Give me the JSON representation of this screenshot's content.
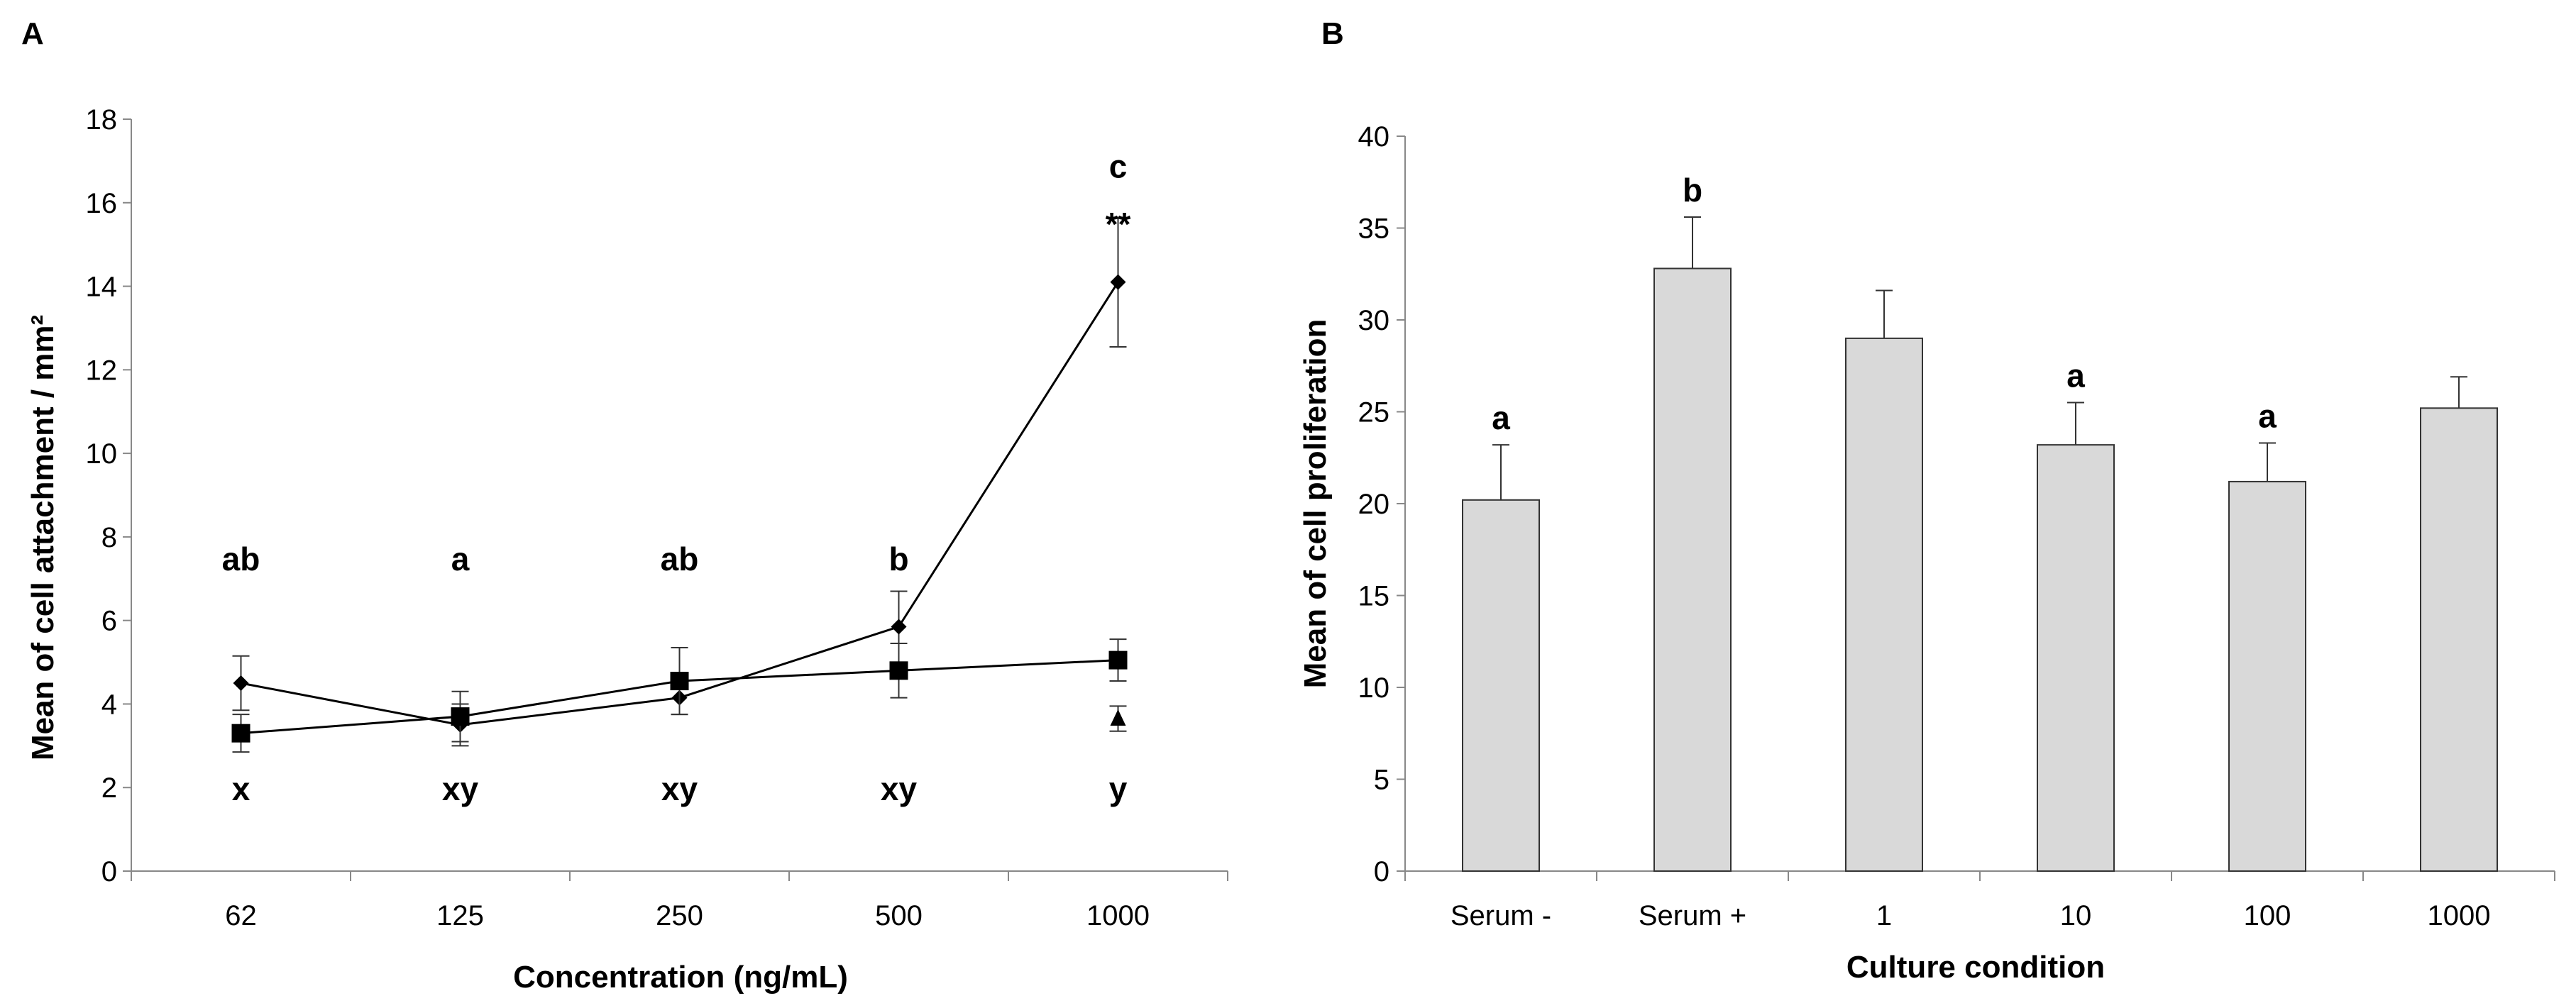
{
  "chart_data": [
    {
      "type": "line",
      "panel": "A",
      "categories": [
        "62",
        "125",
        "250",
        "500",
        "1000"
      ],
      "xlabel": "Concentration (ng/mL)",
      "ylabel": "Mean of cell attachment / mm²",
      "ylim": [
        0,
        18
      ],
      "yticks": [
        "0",
        "2",
        "4",
        "6",
        "8",
        "10",
        "12",
        "14",
        "16",
        "18"
      ],
      "series": [
        {
          "name": "diamond",
          "marker": "diamond",
          "values": [
            4.5,
            3.5,
            4.15,
            5.85,
            14.1
          ],
          "errors": [
            0.65,
            0.5,
            0.4,
            0.85,
            1.55
          ]
        },
        {
          "name": "square",
          "marker": "square",
          "values": [
            3.3,
            3.7,
            4.55,
            4.8,
            5.05
          ],
          "errors": [
            0.45,
            0.6,
            0.8,
            0.65,
            0.5
          ]
        }
      ],
      "extra_point": {
        "category": "1000",
        "marker": "triangle",
        "value": 3.65,
        "error": 0.3
      },
      "letters_top": [
        "ab",
        "a",
        "ab",
        "b",
        "c"
      ],
      "letters_bottom": [
        "x",
        "xy",
        "xy",
        "xy",
        "y"
      ],
      "annotation": "**"
    },
    {
      "type": "bar",
      "panel": "B",
      "categories": [
        "Serum -",
        "Serum +",
        "1",
        "10",
        "100",
        "1000"
      ],
      "values": [
        20.2,
        32.8,
        29.0,
        23.2,
        21.2,
        25.2
      ],
      "errors": [
        3.0,
        2.8,
        2.6,
        2.3,
        2.1,
        1.7
      ],
      "letters": [
        "a",
        "b",
        "",
        "a",
        "a",
        ""
      ],
      "xlabel": "Culture condition",
      "ylabel": "Mean of cell proliferation",
      "ylim": [
        0,
        40
      ],
      "yticks": [
        "0",
        "5",
        "10",
        "15",
        "20",
        "25",
        "30",
        "35",
        "40"
      ]
    }
  ]
}
